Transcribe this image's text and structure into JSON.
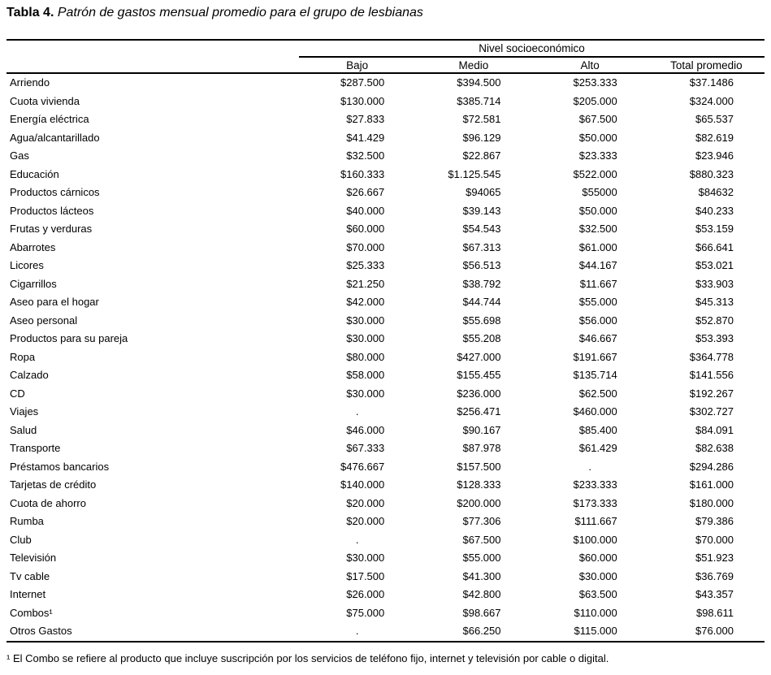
{
  "title": {
    "prefix": "Tabla 4.",
    "text": " Patrón de gastos mensual promedio para el grupo de lesbianas"
  },
  "table": {
    "group_header": "Nivel socioeconómico",
    "columns": [
      "Bajo",
      "Medio",
      "Alto",
      "Total promedio"
    ],
    "missing_marker": ".",
    "rows": [
      {
        "label": "Arriendo",
        "values": [
          "$287.500",
          "$394.500",
          "$253.333",
          "$37.1486"
        ]
      },
      {
        "label": "Cuota vivienda",
        "values": [
          "$130.000",
          "$385.714",
          "$205.000",
          "$324.000"
        ]
      },
      {
        "label": "Energía eléctrica",
        "values": [
          "$27.833",
          "$72.581",
          "$67.500",
          "$65.537"
        ]
      },
      {
        "label": "Agua/alcantarillado",
        "values": [
          "$41.429",
          "$96.129",
          "$50.000",
          "$82.619"
        ]
      },
      {
        "label": "Gas",
        "values": [
          "$32.500",
          "$22.867",
          "$23.333",
          "$23.946"
        ]
      },
      {
        "label": "Educación",
        "values": [
          "$160.333",
          "$1.125.545",
          "$522.000",
          "$880.323"
        ]
      },
      {
        "label": "Productos cárnicos",
        "values": [
          "$26.667",
          "$94065",
          "$55000",
          "$84632"
        ]
      },
      {
        "label": "Productos lácteos",
        "values": [
          "$40.000",
          "$39.143",
          "$50.000",
          "$40.233"
        ]
      },
      {
        "label": "Frutas y verduras",
        "values": [
          "$60.000",
          "$54.543",
          "$32.500",
          "$53.159"
        ]
      },
      {
        "label": "Abarrotes",
        "values": [
          "$70.000",
          "$67.313",
          "$61.000",
          "$66.641"
        ]
      },
      {
        "label": "Licores",
        "values": [
          "$25.333",
          "$56.513",
          "$44.167",
          "$53.021"
        ]
      },
      {
        "label": "Cigarrillos",
        "values": [
          "$21.250",
          "$38.792",
          "$11.667",
          "$33.903"
        ]
      },
      {
        "label": "Aseo para el hogar",
        "values": [
          "$42.000",
          "$44.744",
          "$55.000",
          "$45.313"
        ]
      },
      {
        "label": "Aseo personal",
        "values": [
          "$30.000",
          "$55.698",
          "$56.000",
          "$52.870"
        ]
      },
      {
        "label": "Productos para su pareja",
        "values": [
          "$30.000",
          "$55.208",
          "$46.667",
          "$53.393"
        ]
      },
      {
        "label": "Ropa",
        "values": [
          "$80.000",
          "$427.000",
          "$191.667",
          "$364.778"
        ]
      },
      {
        "label": "Calzado",
        "values": [
          "$58.000",
          "$155.455",
          "$135.714",
          "$141.556"
        ]
      },
      {
        "label": "CD",
        "values": [
          "$30.000",
          "$236.000",
          "$62.500",
          "$192.267"
        ]
      },
      {
        "label": "Viajes",
        "values": [
          ".",
          "$256.471",
          "$460.000",
          "$302.727"
        ]
      },
      {
        "label": "Salud",
        "values": [
          "$46.000",
          "$90.167",
          "$85.400",
          "$84.091"
        ]
      },
      {
        "label": "Transporte",
        "values": [
          "$67.333",
          "$87.978",
          "$61.429",
          "$82.638"
        ]
      },
      {
        "label": "Préstamos bancarios",
        "values": [
          "$476.667",
          "$157.500",
          ".",
          "$294.286"
        ]
      },
      {
        "label": "Tarjetas de crédito",
        "values": [
          "$140.000",
          "$128.333",
          "$233.333",
          "$161.000"
        ]
      },
      {
        "label": "Cuota de ahorro",
        "values": [
          "$20.000",
          "$200.000",
          "$173.333",
          "$180.000"
        ]
      },
      {
        "label": "Rumba",
        "values": [
          "$20.000",
          "$77.306",
          "$111.667",
          "$79.386"
        ]
      },
      {
        "label": "Club",
        "values": [
          ".",
          "$67.500",
          "$100.000",
          "$70.000"
        ]
      },
      {
        "label": "Televisión",
        "values": [
          "$30.000",
          "$55.000",
          "$60.000",
          "$51.923"
        ]
      },
      {
        "label": "Tv cable",
        "values": [
          "$17.500",
          "$41.300",
          "$30.000",
          "$36.769"
        ]
      },
      {
        "label": "Internet",
        "values": [
          "$26.000",
          "$42.800",
          "$63.500",
          "$43.357"
        ]
      },
      {
        "label": "Combos¹",
        "values": [
          "$75.000",
          "$98.667",
          "$110.000",
          "$98.611"
        ]
      },
      {
        "label": "Otros Gastos",
        "values": [
          ".",
          "$66.250",
          "$115.000",
          "$76.000"
        ]
      }
    ]
  },
  "footnote": "¹ El Combo se refiere al producto que incluye suscripción por los servicios de teléfono fijo, internet y televisión por cable o digital.",
  "colors": {
    "text": "#000000",
    "rule": "#000000",
    "background": "#ffffff"
  }
}
